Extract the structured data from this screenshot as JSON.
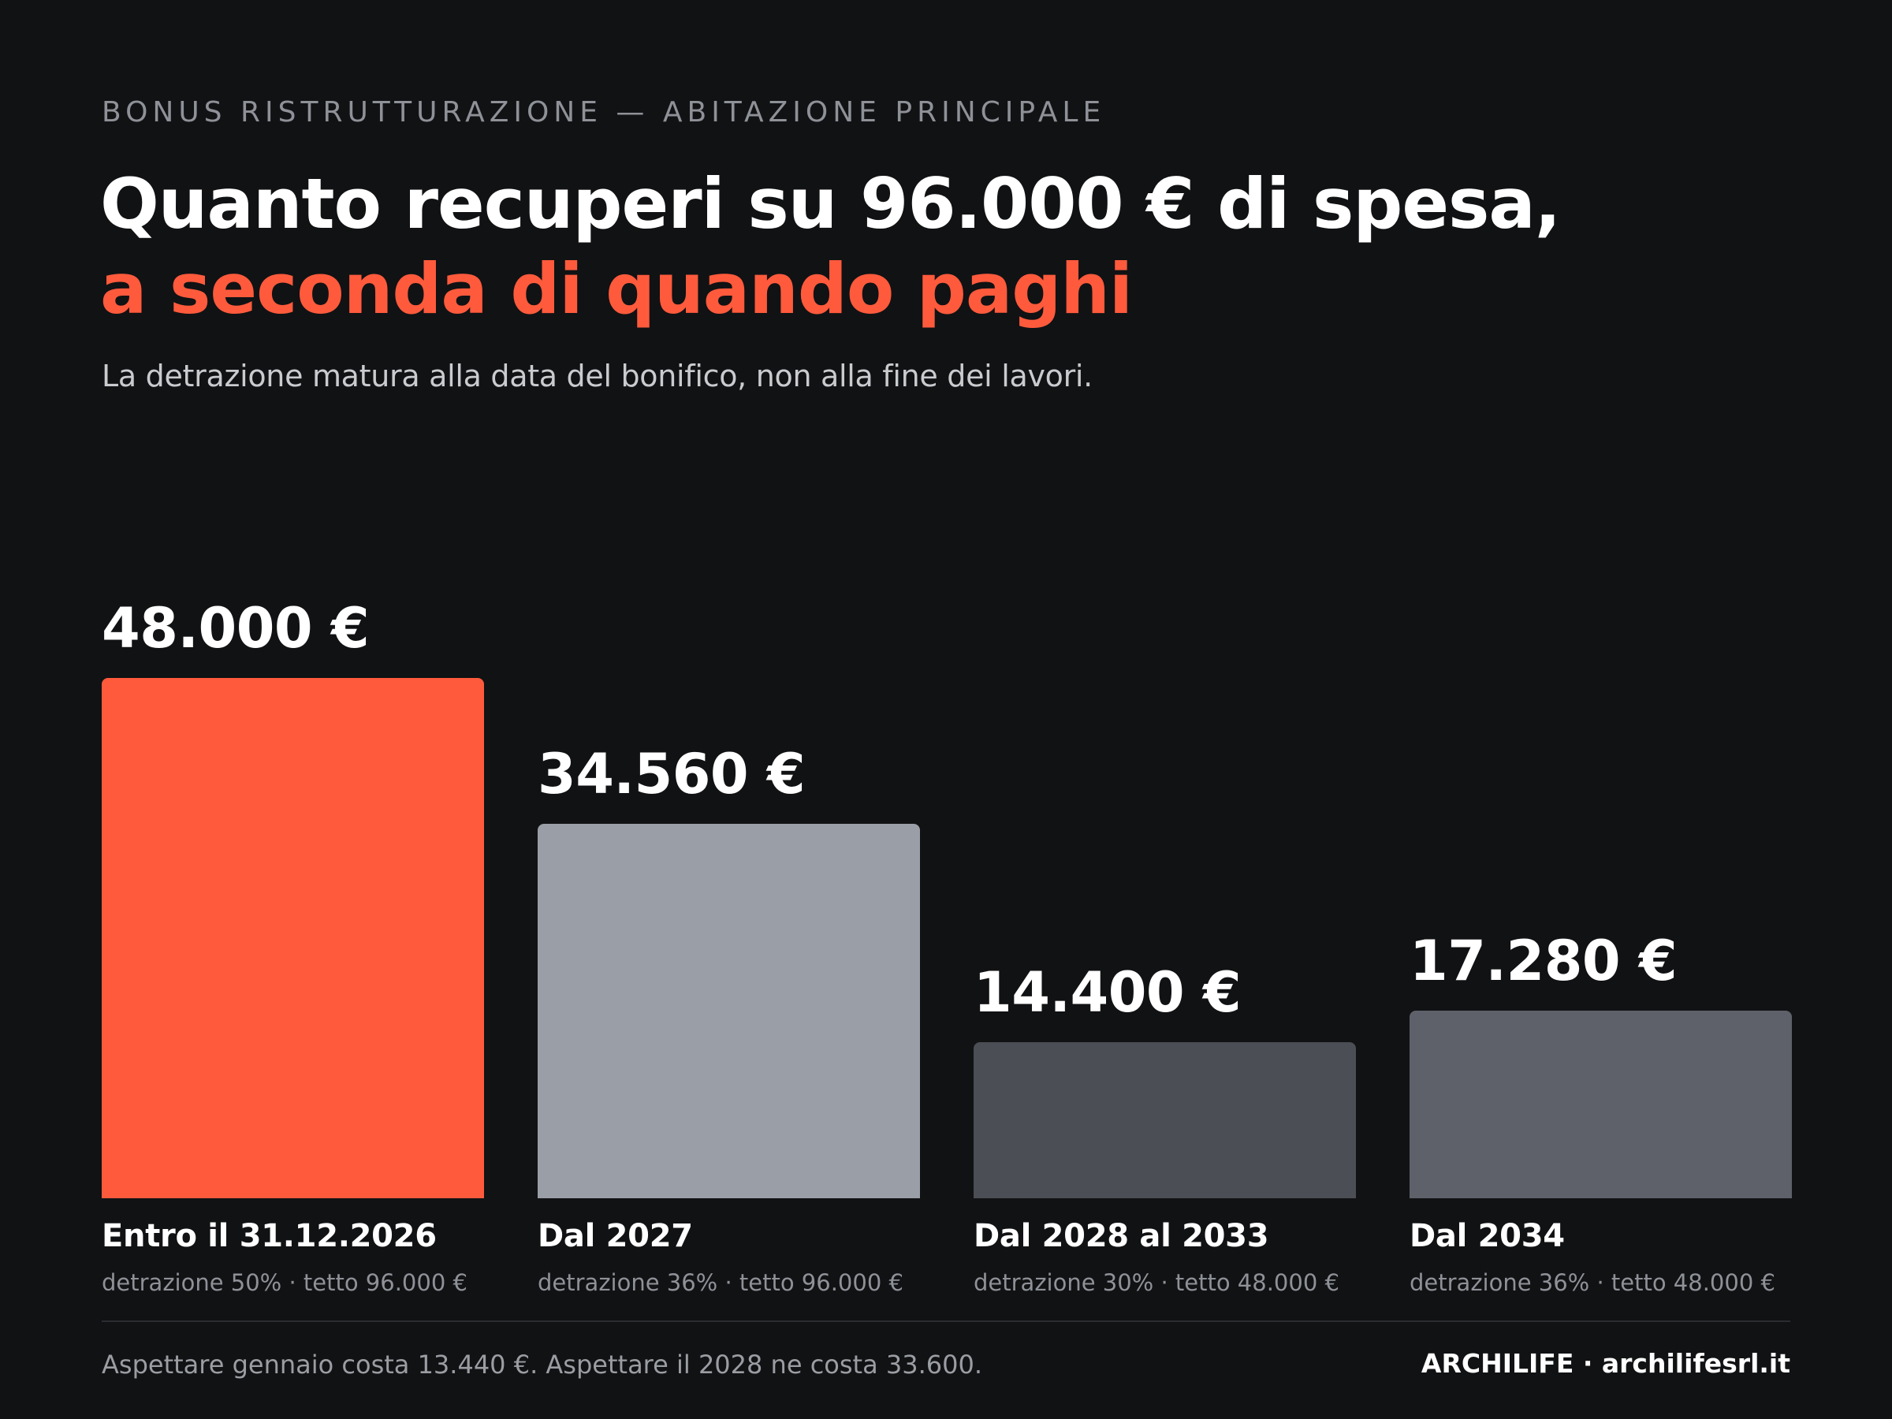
{
  "header": {
    "eyebrow": "BONUS RISTRUTTURAZIONE — ABITAZIONE PRINCIPALE",
    "title_line1": "Quanto recuperi su 96.000 € di spesa,",
    "title_line2": "a seconda di quando paghi",
    "subtitle": "La detrazione matura alla data del bonifico, non alla fine dei lavori."
  },
  "chart_data": {
    "type": "bar",
    "categories": [
      "Entro il 31.12.2026",
      "Dal 2027",
      "Dal 2028 al 2033",
      "Dal 2034"
    ],
    "category_details": [
      "detrazione 50% · tetto 96.000 €",
      "detrazione 36% · tetto 96.000 €",
      "detrazione 30% · tetto 48.000 €",
      "detrazione 36% · tetto 48.000 €"
    ],
    "values": [
      48000,
      34560,
      14400,
      17280
    ],
    "value_labels": [
      "48.000 €",
      "34.560 €",
      "14.400 €",
      "17.280 €"
    ],
    "colors": [
      "#ff5a3c",
      "#9a9ea6",
      "#4b4e54",
      "#5e6169"
    ],
    "ylim": [
      0,
      48000
    ],
    "grid": false
  },
  "footer": {
    "note": "Aspettare gennaio costa 13.440 €. Aspettare il 2028 ne costa 33.600.",
    "brand": "ARCHILIFE · archilifesrl.it"
  }
}
